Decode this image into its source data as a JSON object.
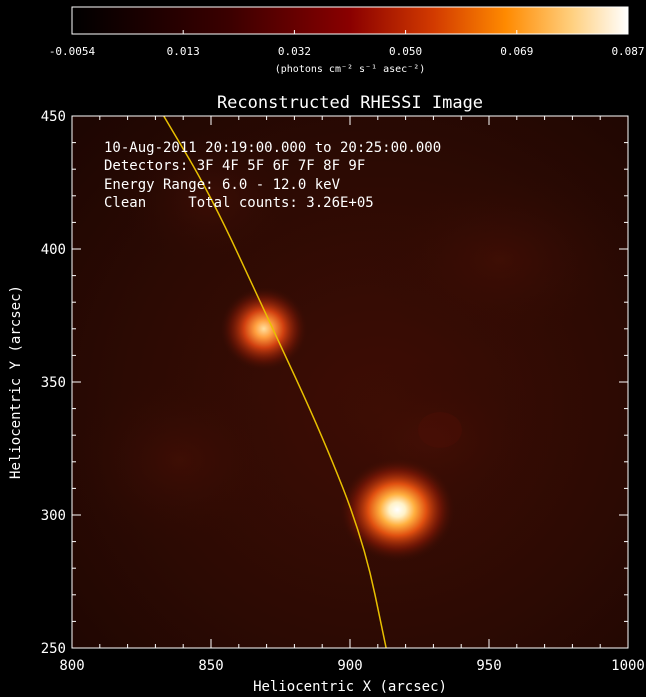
{
  "colorbar": {
    "ticks": [
      "-0.0054",
      "0.013",
      "0.032",
      "0.050",
      "0.069",
      "0.087"
    ],
    "unit_label": "(photons cm⁻² s⁻¹ asec⁻²)"
  },
  "chart_data": {
    "type": "heatmap",
    "title": "Reconstructed RHESSI Image",
    "xlabel": "Heliocentric X (arcsec)",
    "ylabel": "Heliocentric Y (arcsec)",
    "xlim": [
      800,
      1000
    ],
    "ylim": [
      250,
      450
    ],
    "x_ticks": [
      800,
      850,
      900,
      950,
      1000
    ],
    "y_ticks": [
      250,
      300,
      350,
      400,
      450
    ],
    "value_range": [
      -0.0054,
      0.087
    ],
    "sources": [
      {
        "x": 917,
        "y": 302,
        "peak": 0.087
      },
      {
        "x": 869,
        "y": 370,
        "peak": 0.07
      }
    ],
    "limb_curve": [
      [
        833,
        450
      ],
      [
        850,
        420
      ],
      [
        870,
        375
      ],
      [
        890,
        330
      ],
      [
        905,
        290
      ],
      [
        913,
        250
      ]
    ],
    "annotations": [
      "10-Aug-2011 20:19:00.000 to 20:25:00.000",
      "Detectors: 3F 4F 5F 6F 7F 8F 9F",
      "Energy Range: 6.0 - 12.0 keV",
      "Clean     Total counts: 3.26E+05"
    ],
    "limb_color": "#e8c000"
  }
}
